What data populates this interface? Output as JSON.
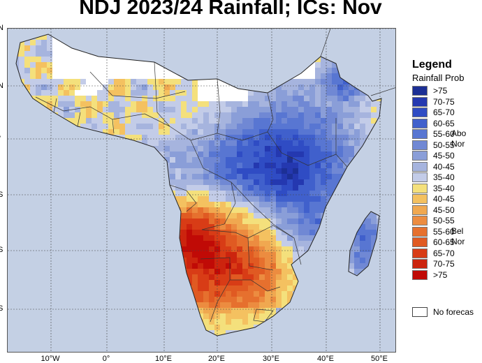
{
  "title": "NDJ 2023/24 Rainfall; ICs: Nov",
  "legend": {
    "title": "Legend",
    "subtitle": "Rainfall Prob",
    "above_lines": [
      "Abo",
      "Nor"
    ],
    "below_lines": [
      "Bel",
      "Nor"
    ],
    "no_forecast_label": "No forecas",
    "no_forecast_color": "#ffffff",
    "items": [
      {
        "label": ">75",
        "color": "#1c2f95"
      },
      {
        "label": "70-75",
        "color": "#2438b0"
      },
      {
        "label": "65-70",
        "color": "#2f4cc4"
      },
      {
        "label": "60-65",
        "color": "#4060cc"
      },
      {
        "label": "55-60",
        "color": "#5876d2"
      },
      {
        "label": "50-55",
        "color": "#7088d4"
      },
      {
        "label": "45-50",
        "color": "#8a9ed8"
      },
      {
        "label": "40-45",
        "color": "#a6b4de"
      },
      {
        "label": "35-40",
        "color": "#c3cce8"
      },
      {
        "label": "35-40",
        "color": "#f4e07c"
      },
      {
        "label": "40-45",
        "color": "#f4c160"
      },
      {
        "label": "45-50",
        "color": "#f0a850"
      },
      {
        "label": "50-55",
        "color": "#ec8c40"
      },
      {
        "label": "55-60",
        "color": "#e6702e"
      },
      {
        "label": "60-65",
        "color": "#e05a22"
      },
      {
        "label": "65-70",
        "color": "#d83c16"
      },
      {
        "label": "70-75",
        "color": "#cc240e"
      },
      {
        "label": ">75",
        "color": "#c00a06"
      }
    ]
  },
  "map": {
    "ocean_color": "#c4d0e4",
    "lon_ticks": [
      "10°W",
      "0°",
      "10°E",
      "20°E",
      "30°E",
      "40°E",
      "50°E"
    ],
    "lat_ticks": [
      "N",
      "N",
      "°",
      "S",
      "S",
      "S"
    ]
  }
}
